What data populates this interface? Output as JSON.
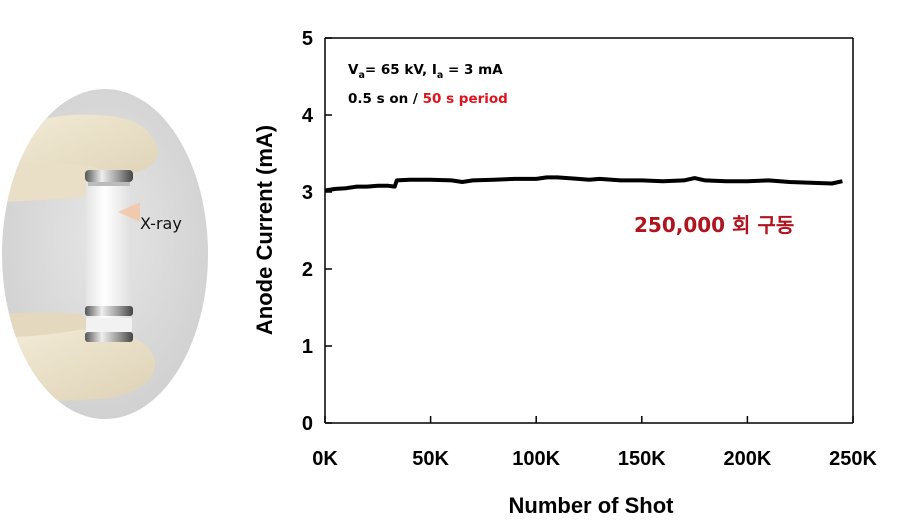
{
  "photo": {
    "label": "X-ray"
  },
  "chart_data": {
    "type": "line",
    "xlabel": "Number of Shot",
    "ylabel": "Anode Current (mA)",
    "xlim": [
      0,
      250000
    ],
    "ylim": [
      0,
      5
    ],
    "x_ticks": [
      0,
      50000,
      100000,
      150000,
      200000,
      250000
    ],
    "x_tick_labels": [
      "0K",
      "50K",
      "100K",
      "150K",
      "200K",
      "250K"
    ],
    "y_ticks": [
      0,
      1,
      2,
      3,
      4,
      5
    ],
    "y_tick_labels": [
      "0",
      "1",
      "2",
      "3",
      "4",
      "5"
    ],
    "series": [
      {
        "color": "#000000",
        "x": [
          0,
          5000,
          10000,
          15000,
          20000,
          25000,
          30000,
          33000,
          34000,
          40000,
          50000,
          60000,
          65000,
          70000,
          80000,
          90000,
          100000,
          105000,
          110000,
          115000,
          120000,
          125000,
          130000,
          140000,
          150000,
          160000,
          170000,
          175000,
          180000,
          190000,
          200000,
          210000,
          220000,
          230000,
          240000,
          245000
        ],
        "y": [
          3.02,
          3.04,
          3.05,
          3.07,
          3.07,
          3.08,
          3.08,
          3.07,
          3.15,
          3.16,
          3.16,
          3.15,
          3.13,
          3.15,
          3.16,
          3.17,
          3.17,
          3.19,
          3.19,
          3.18,
          3.17,
          3.16,
          3.17,
          3.15,
          3.15,
          3.14,
          3.15,
          3.18,
          3.15,
          3.14,
          3.14,
          3.15,
          3.13,
          3.12,
          3.11,
          3.14
        ]
      }
    ],
    "annotations": {
      "conditions_line1_parts": [
        "V",
        "a",
        "= 65 kV, I",
        "a",
        " = 3 mA"
      ],
      "conditions_line2_black": "0.5 s on / ",
      "conditions_line2_red": "50 s period",
      "count_text": "250,000 회 구동"
    },
    "grid": false,
    "legend": "none"
  }
}
